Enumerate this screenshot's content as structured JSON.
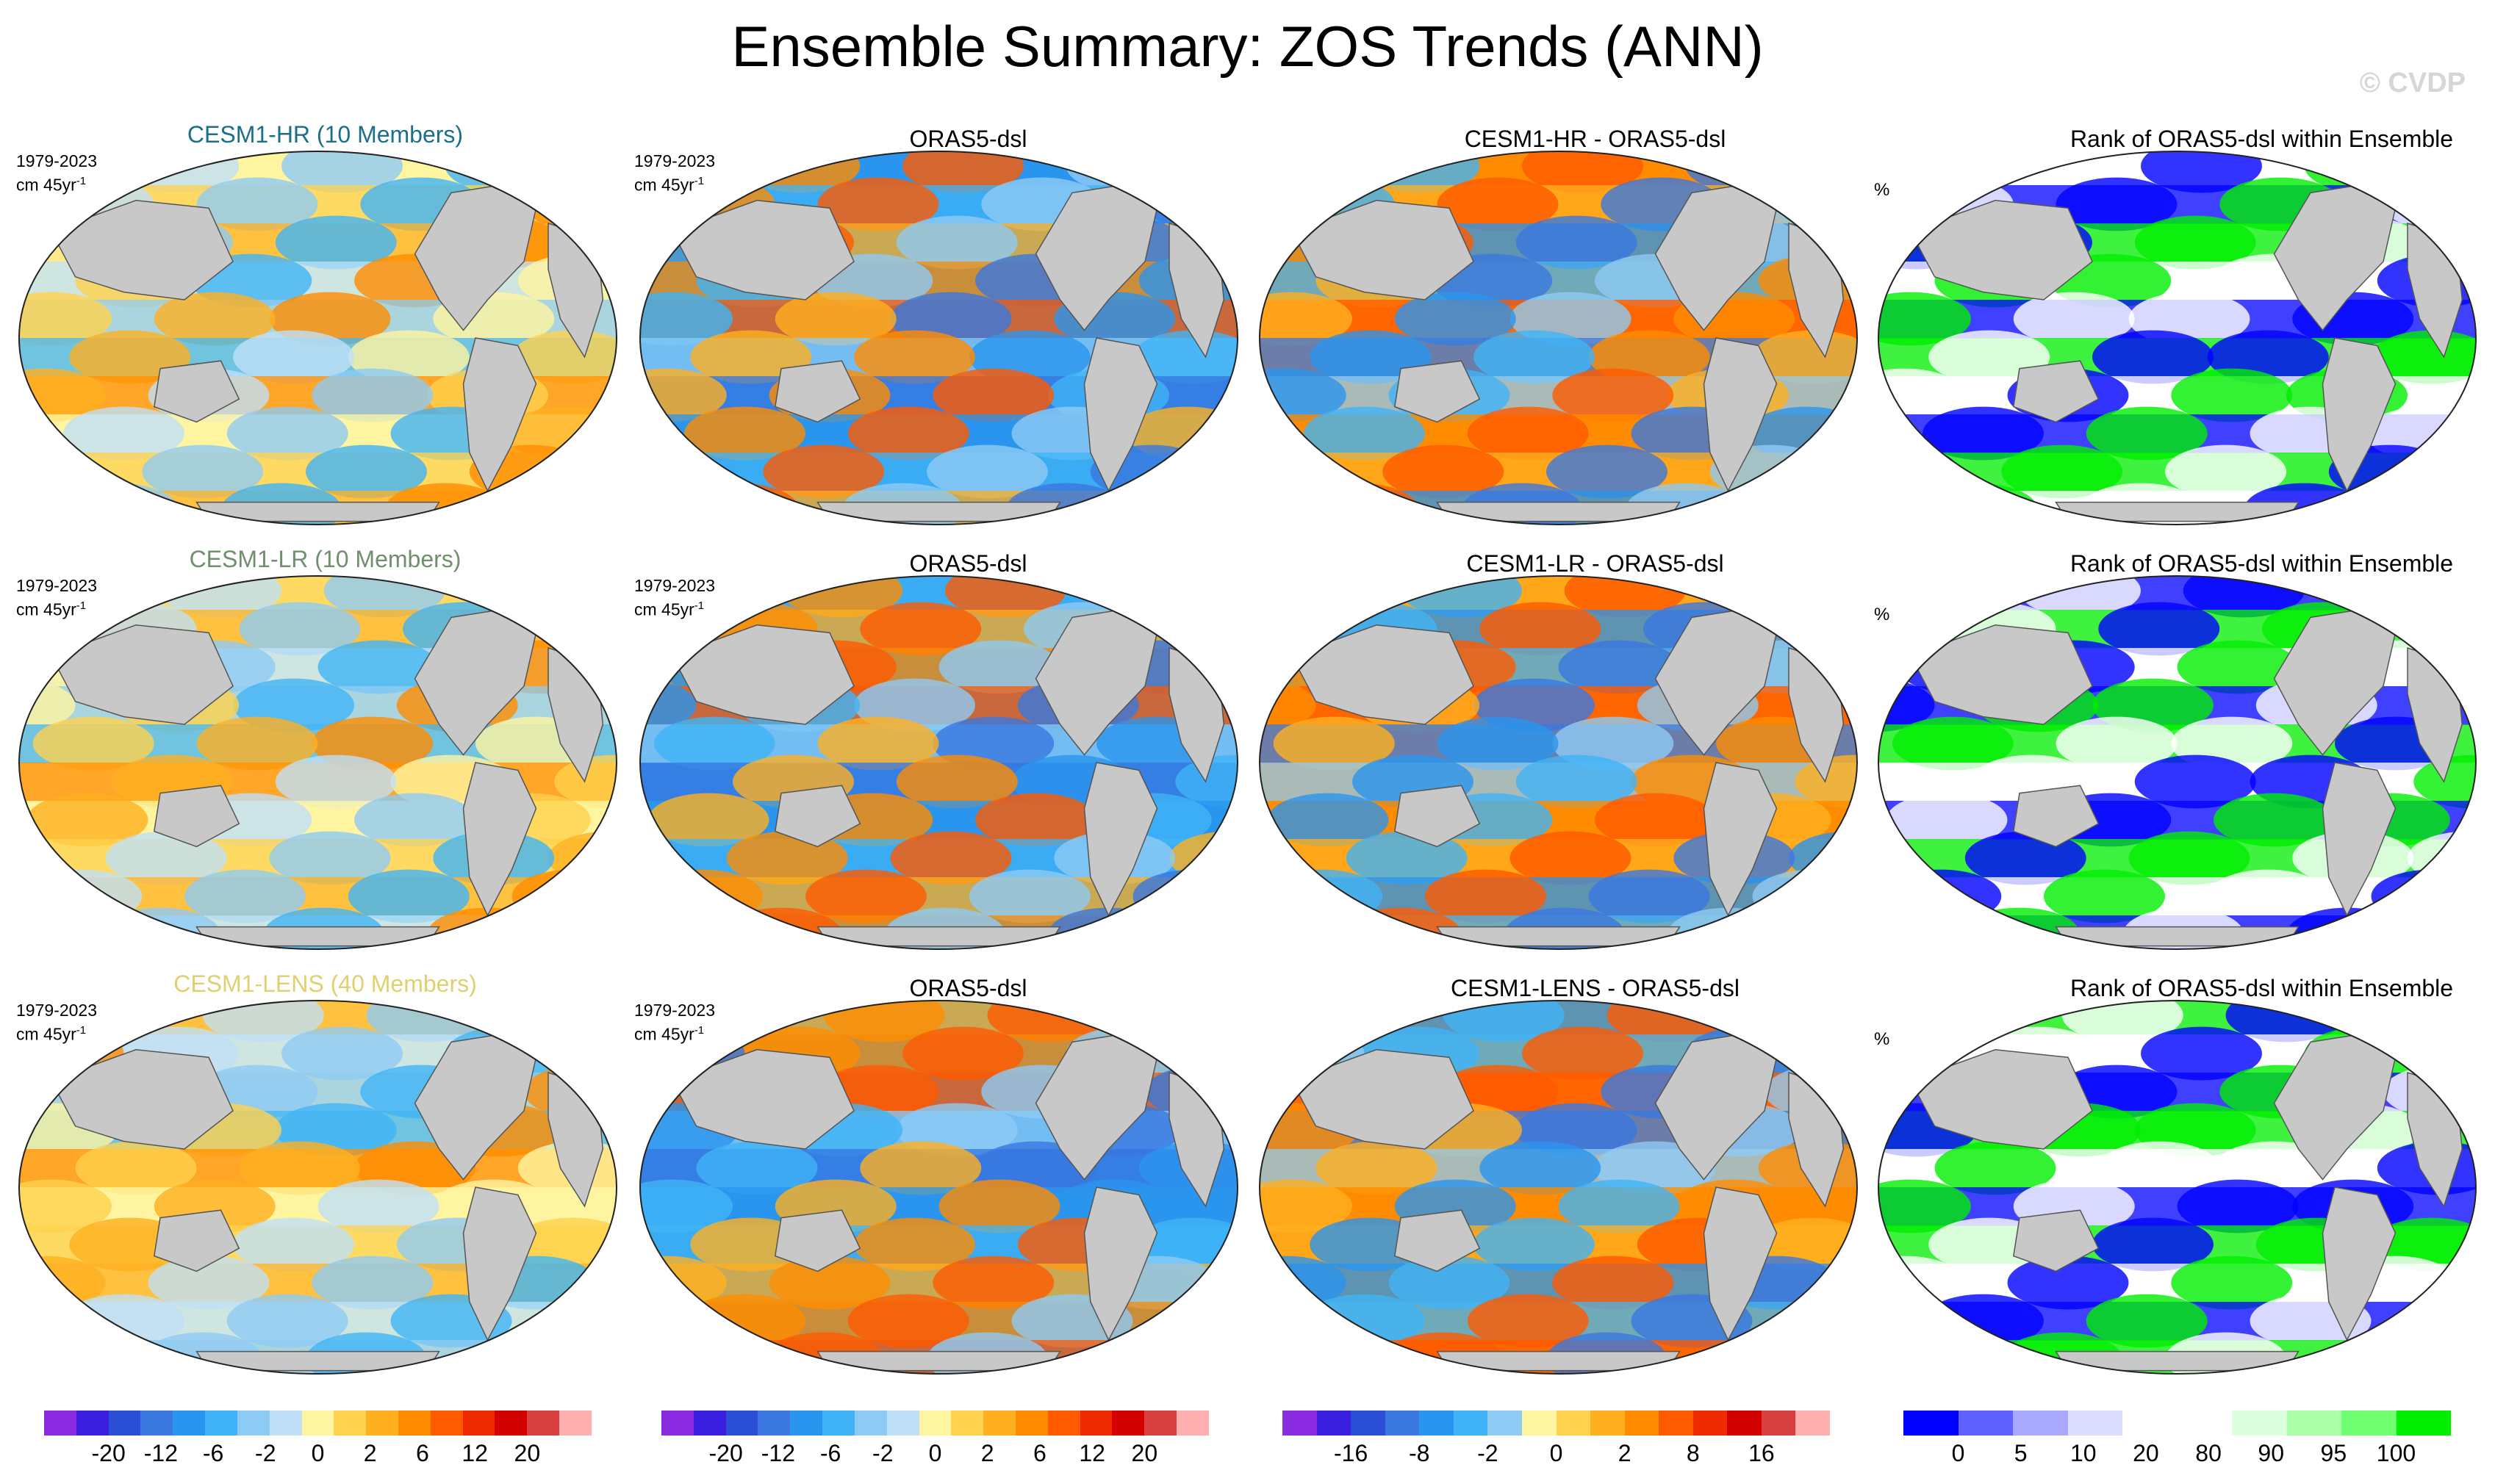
{
  "title": "Ensemble Summary: ZOS Trends (ANN)",
  "watermark": "© CVDP",
  "period": "1979-2023",
  "units_base": "cm 45yr",
  "units_sup": "-1",
  "percent_label": "%",
  "rows": [
    {
      "model": {
        "label": "CESM1-HR (10 Members)",
        "color": "#1a6f8a"
      },
      "obs": "ORAS5-dsl",
      "diff": "CESM1-HR - ORAS5-dsl",
      "rank": "Rank of ORAS5-dsl within Ensemble"
    },
    {
      "model": {
        "label": "CESM1-LR (10 Members)",
        "color": "#6f8f6f"
      },
      "obs": "ORAS5-dsl",
      "diff": "CESM1-LR - ORAS5-dsl",
      "rank": "Rank of ORAS5-dsl within Ensemble"
    },
    {
      "model": {
        "label": "CESM1-LENS (40 Members)",
        "color": "#e0d070"
      },
      "obs": "ORAS5-dsl",
      "diff": "CESM1-LENS - ORAS5-dsl",
      "rank": "Rank of ORAS5-dsl within Ensemble"
    }
  ],
  "colorbars": [
    {
      "colors": [
        "#8a2be2",
        "#3a1fe0",
        "#2a4fd6",
        "#3a78e0",
        "#2a95ee",
        "#40b4f6",
        "#8ecbf4",
        "#bfe0f6",
        "#fff4a0",
        "#ffd24d",
        "#ffb020",
        "#ff8c00",
        "#ff5a00",
        "#f02a00",
        "#d40000",
        "#d84040",
        "#ffb0b0"
      ],
      "labels": [
        "-20",
        "-12",
        "-6",
        "-2",
        "0",
        "2",
        "6",
        "12",
        "20"
      ]
    },
    {
      "colors": [
        "#8a2be2",
        "#3a1fe0",
        "#2a4fd6",
        "#3a78e0",
        "#2a95ee",
        "#40b4f6",
        "#8ecbf4",
        "#bfe0f6",
        "#fff4a0",
        "#ffd24d",
        "#ffb020",
        "#ff8c00",
        "#ff5a00",
        "#f02a00",
        "#d40000",
        "#d84040",
        "#ffb0b0"
      ],
      "labels": [
        "-20",
        "-12",
        "-6",
        "-2",
        "0",
        "2",
        "6",
        "12",
        "20"
      ]
    },
    {
      "colors": [
        "#8a2be2",
        "#3a1fe0",
        "#2a4fd6",
        "#3a78e0",
        "#2a95ee",
        "#40b4f6",
        "#8ecbf4",
        "#fff4a0",
        "#ffd24d",
        "#ffb020",
        "#ff8c00",
        "#ff5a00",
        "#f02a00",
        "#d40000",
        "#d84040",
        "#ffb0b0"
      ],
      "labels": [
        "-16",
        "-8",
        "-2",
        "0",
        "2",
        "8",
        "16"
      ]
    },
    {
      "colors": [
        "#0000ff",
        "#6060ff",
        "#a8a8ff",
        "#dcdcff",
        "#ffffff",
        "#ffffff",
        "#dcffdc",
        "#a8ffa8",
        "#70ff70",
        "#00ee00"
      ],
      "labels": [
        "0",
        "5",
        "10",
        "20",
        "80",
        "90",
        "95",
        "100"
      ]
    }
  ]
}
